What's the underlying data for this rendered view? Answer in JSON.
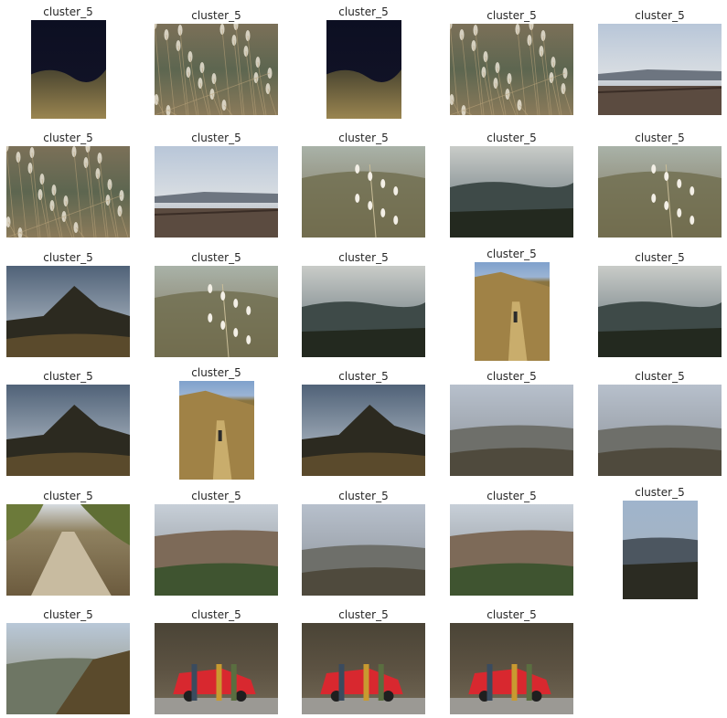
{
  "grid": {
    "columns": 5,
    "rows": 6,
    "tiles": [
      {
        "label": "cluster_5",
        "scene": "dark-grass",
        "orientation": "portrait"
      },
      {
        "label": "cluster_5",
        "scene": "dry-grass",
        "orientation": "landscape"
      },
      {
        "label": "cluster_5",
        "scene": "dark-grass",
        "orientation": "portrait"
      },
      {
        "label": "cluster_5",
        "scene": "dry-grass",
        "orientation": "landscape"
      },
      {
        "label": "cluster_5",
        "scene": "terrace-view",
        "orientation": "landscape"
      },
      {
        "label": "cluster_5",
        "scene": "dry-grass",
        "orientation": "landscape"
      },
      {
        "label": "cluster_5",
        "scene": "terrace-view",
        "orientation": "landscape"
      },
      {
        "label": "cluster_5",
        "scene": "flowers-valley",
        "orientation": "landscape"
      },
      {
        "label": "cluster_5",
        "scene": "misty-ridge",
        "orientation": "landscape"
      },
      {
        "label": "cluster_5",
        "scene": "flowers-valley",
        "orientation": "landscape"
      },
      {
        "label": "cluster_5",
        "scene": "peak-silhouette",
        "orientation": "landscape"
      },
      {
        "label": "cluster_5",
        "scene": "flowers-valley",
        "orientation": "landscape"
      },
      {
        "label": "cluster_5",
        "scene": "misty-ridge",
        "orientation": "landscape"
      },
      {
        "label": "cluster_5",
        "scene": "trail-portrait",
        "orientation": "portrait"
      },
      {
        "label": "cluster_5",
        "scene": "misty-ridge",
        "orientation": "landscape"
      },
      {
        "label": "cluster_5",
        "scene": "peak-silhouette",
        "orientation": "landscape"
      },
      {
        "label": "cluster_5",
        "scene": "trail-portrait",
        "orientation": "portrait"
      },
      {
        "label": "cluster_5",
        "scene": "peak-silhouette",
        "orientation": "landscape"
      },
      {
        "label": "cluster_5",
        "scene": "hazy-valley",
        "orientation": "landscape"
      },
      {
        "label": "cluster_5",
        "scene": "hazy-valley",
        "orientation": "landscape"
      },
      {
        "label": "cluster_5",
        "scene": "rocky-path",
        "orientation": "landscape"
      },
      {
        "label": "cluster_5",
        "scene": "green-valley",
        "orientation": "landscape"
      },
      {
        "label": "cluster_5",
        "scene": "hazy-valley",
        "orientation": "landscape"
      },
      {
        "label": "cluster_5",
        "scene": "green-valley",
        "orientation": "landscape"
      },
      {
        "label": "cluster_5",
        "scene": "hazy-portrait",
        "orientation": "portrait"
      },
      {
        "label": "cluster_5",
        "scene": "cliff-valley",
        "orientation": "landscape"
      },
      {
        "label": "cluster_5",
        "scene": "red-car",
        "orientation": "landscape"
      },
      {
        "label": "cluster_5",
        "scene": "red-car",
        "orientation": "landscape"
      },
      {
        "label": "cluster_5",
        "scene": "red-car",
        "orientation": "landscape"
      }
    ]
  }
}
